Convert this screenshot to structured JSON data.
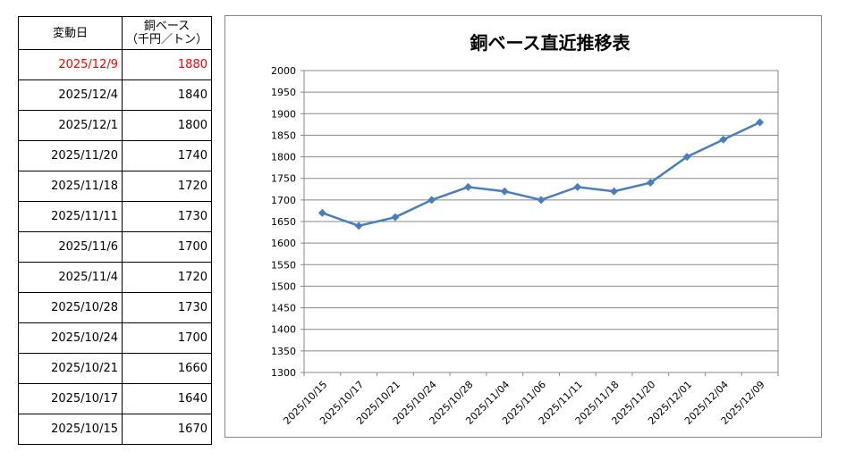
{
  "table": {
    "header_date": "変動日",
    "header_value_line1": "銅ベース",
    "header_value_line2": "（千円／トン）",
    "rows": [
      {
        "date": "2025/12/9",
        "value": "1880"
      },
      {
        "date": "2025/12/4",
        "value": "1840"
      },
      {
        "date": "2025/12/1",
        "value": "1800"
      },
      {
        "date": "2025/11/20",
        "value": "1740"
      },
      {
        "date": "2025/11/18",
        "value": "1720"
      },
      {
        "date": "2025/11/11",
        "value": "1730"
      },
      {
        "date": "2025/11/6",
        "value": "1700"
      },
      {
        "date": "2025/11/4",
        "value": "1720"
      },
      {
        "date": "2025/10/28",
        "value": "1730"
      },
      {
        "date": "2025/10/24",
        "value": "1700"
      },
      {
        "date": "2025/10/21",
        "value": "1660"
      },
      {
        "date": "2025/10/17",
        "value": "1640"
      },
      {
        "date": "2025/10/15",
        "value": "1670"
      }
    ],
    "highlight_color": "#ff0000"
  },
  "chart_data": {
    "type": "line",
    "title": "銅ベース直近推移表",
    "xlabel": "",
    "ylabel": "",
    "x": [
      "2025/10/15",
      "2025/10/17",
      "2025/10/21",
      "2025/10/24",
      "2025/10/28",
      "2025/11/04",
      "2025/11/06",
      "2025/11/11",
      "2025/11/18",
      "2025/11/20",
      "2025/12/01",
      "2025/12/04",
      "2025/12/09"
    ],
    "series": [
      {
        "values": [
          1670,
          1640,
          1660,
          1700,
          1730,
          1720,
          1700,
          1730,
          1720,
          1740,
          1800,
          1840,
          1880
        ]
      }
    ],
    "ylim": [
      1300,
      2000
    ],
    "yticks": [
      1300,
      1350,
      1400,
      1450,
      1500,
      1550,
      1600,
      1650,
      1700,
      1750,
      1800,
      1850,
      1900,
      1950,
      2000
    ],
    "grid": true,
    "legend": "none",
    "line_color": "#4a7ebb"
  }
}
